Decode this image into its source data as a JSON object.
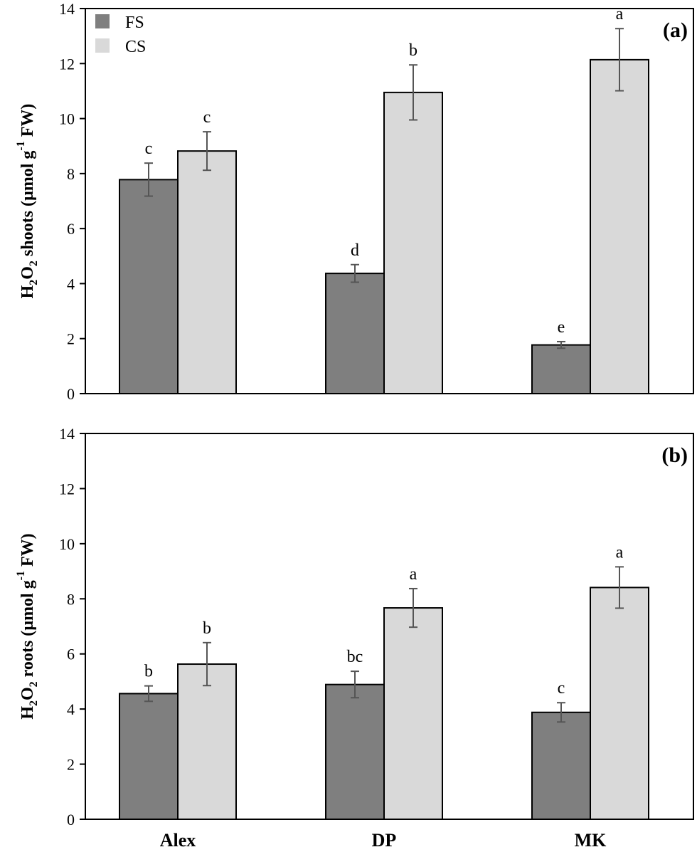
{
  "legend": [
    {
      "name": "FS",
      "color": "#7f7f7f"
    },
    {
      "name": "CS",
      "color": "#d9d9d9"
    }
  ],
  "colors": {
    "fs": "#7f7f7f",
    "cs": "#d9d9d9",
    "error_bar": "#555555",
    "axis": "#000000"
  },
  "chart_data": [
    {
      "type": "bar",
      "panel_label": "(a)",
      "ylabel_parts": [
        "H",
        "2",
        "O",
        "2",
        " shoots (µmol g",
        "-1",
        " FW)"
      ],
      "ylim": [
        0,
        14
      ],
      "yticks": [
        0,
        2,
        4,
        6,
        8,
        10,
        12,
        14
      ],
      "categories": [
        "Alex",
        "DP",
        "MK"
      ],
      "grid": false,
      "legend_position": "top-left",
      "series": [
        {
          "name": "FS",
          "values": [
            7.78,
            4.37,
            1.77
          ],
          "errors": [
            0.6,
            0.32,
            0.12
          ],
          "labels": [
            "c",
            "d",
            "e"
          ]
        },
        {
          "name": "CS",
          "values": [
            8.82,
            10.95,
            12.14
          ],
          "errors": [
            0.7,
            1.0,
            1.13
          ],
          "labels": [
            "c",
            "b",
            "a"
          ]
        }
      ]
    },
    {
      "type": "bar",
      "panel_label": "(b)",
      "ylabel_parts": [
        "H",
        "2",
        "O",
        "2",
        " roots (µmol g",
        "-1",
        " FW)"
      ],
      "ylim": [
        0,
        14
      ],
      "yticks": [
        0,
        2,
        4,
        6,
        8,
        10,
        12,
        14
      ],
      "categories": [
        "Alex",
        "DP",
        "MK"
      ],
      "grid": false,
      "series": [
        {
          "name": "FS",
          "values": [
            4.56,
            4.89,
            3.88
          ],
          "errors": [
            0.28,
            0.48,
            0.35
          ],
          "labels": [
            "b",
            "bc",
            "c"
          ]
        },
        {
          "name": "CS",
          "values": [
            5.63,
            7.67,
            8.41
          ],
          "errors": [
            0.78,
            0.7,
            0.75
          ],
          "labels": [
            "b",
            "a",
            "a"
          ]
        }
      ]
    }
  ]
}
